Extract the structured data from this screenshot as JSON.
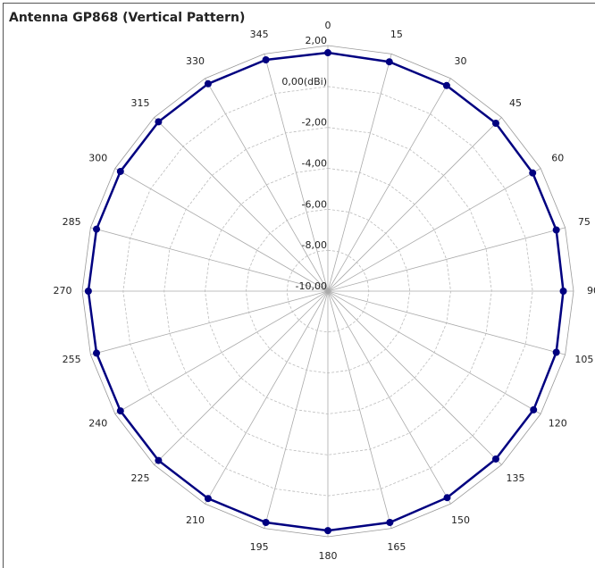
{
  "chart_data": {
    "type": "polar",
    "title": "Antenna GP868 (Vertical Pattern)",
    "categories": [
      "0",
      "15",
      "30",
      "45",
      "60",
      "75",
      "90",
      "105",
      "120",
      "135",
      "150",
      "165",
      "180",
      "195",
      "210",
      "225",
      "240",
      "255",
      "270",
      "285",
      "300",
      "315",
      "330",
      "345"
    ],
    "series": [
      {
        "name": "GP868",
        "color": "#000080",
        "values": [
          1.65,
          1.6,
          1.6,
          1.6,
          1.55,
          1.55,
          1.5,
          1.55,
          1.6,
          1.6,
          1.65,
          1.7,
          1.7,
          1.7,
          1.7,
          1.7,
          1.7,
          1.7,
          1.7,
          1.7,
          1.7,
          1.7,
          1.7,
          1.7
        ]
      }
    ],
    "rlim": [
      -10,
      2
    ],
    "rticks": [
      {
        "value": -10,
        "label": "-10,00"
      },
      {
        "value": -8,
        "label": "-8,00"
      },
      {
        "value": -6,
        "label": "-6,00"
      },
      {
        "value": -4,
        "label": "-4,00"
      },
      {
        "value": -2,
        "label": "-2,00"
      },
      {
        "value": 0,
        "label": "0,00(dBi)"
      },
      {
        "value": 2,
        "label": "2,00"
      }
    ],
    "grid": true
  }
}
